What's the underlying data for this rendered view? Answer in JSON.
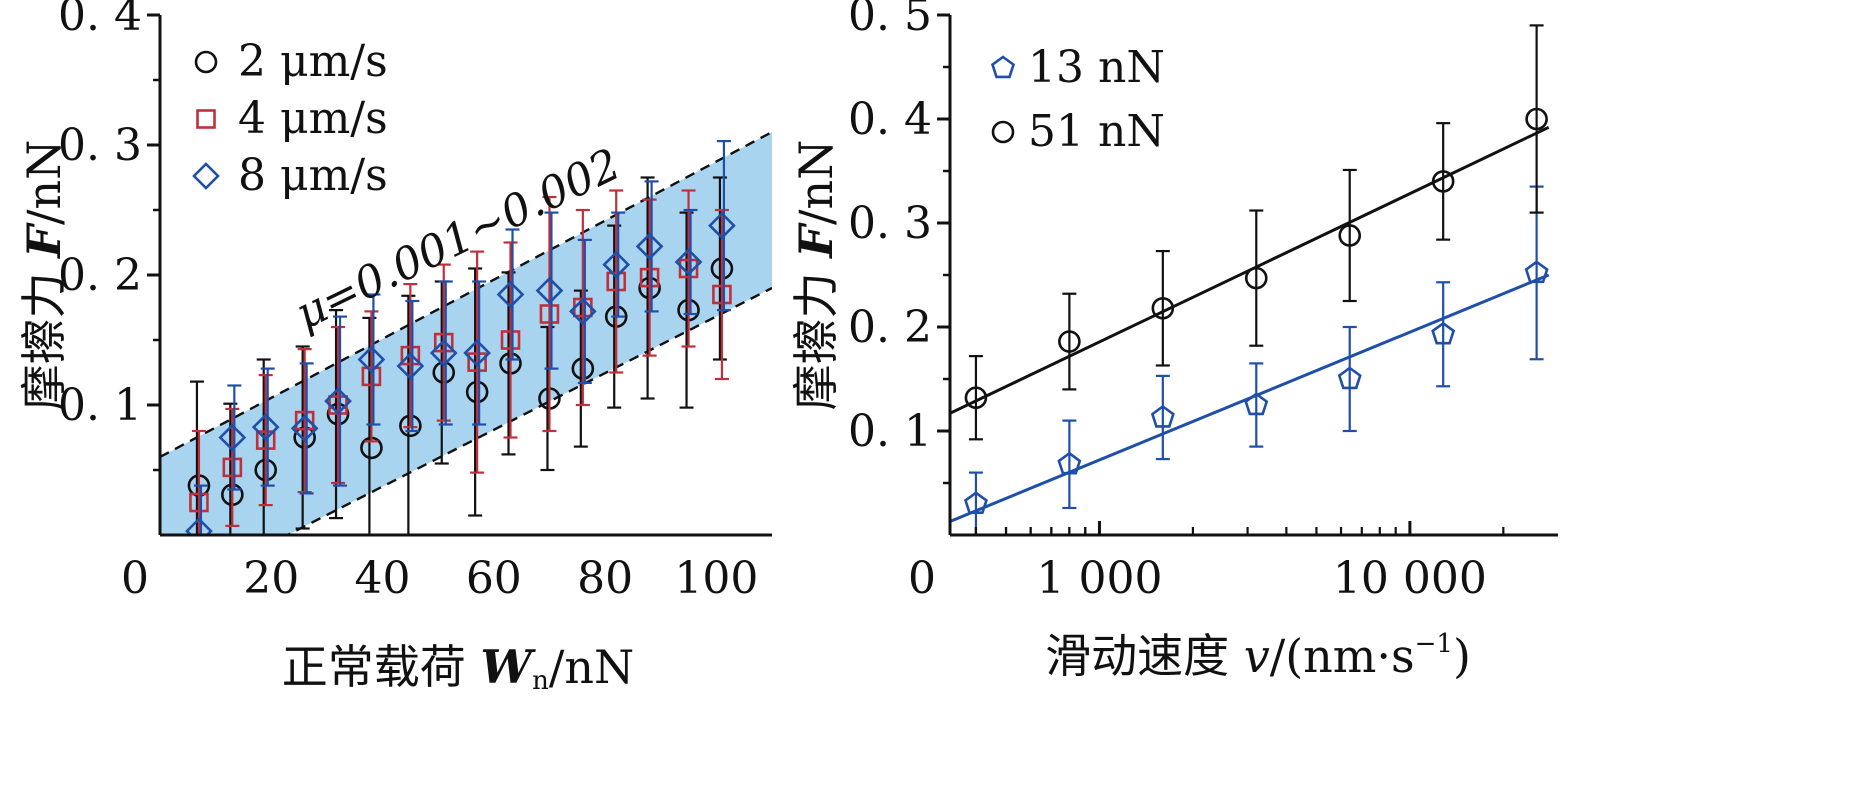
{
  "chart_data": [
    {
      "type": "scatter",
      "xlabel": "正常载荷 Wn /nN",
      "xlabel_parts": {
        "prefix": "正常载荷 ",
        "var": "W",
        "sub": "n",
        "suffix": "/nN"
      },
      "ylabel": "摩擦力 F/nN",
      "ylabel_parts": {
        "prefix": "摩擦力 ",
        "var": "F",
        "suffix": "/nN"
      },
      "xlim": [
        0,
        110
      ],
      "ylim": [
        0,
        0.4
      ],
      "x_ticks": [
        0,
        20,
        40,
        60,
        80,
        100
      ],
      "x_tick_labels": [
        "0",
        "20",
        "40",
        "60",
        "80",
        "100"
      ],
      "y_ticks": [
        0.1,
        0.2,
        0.3,
        0.4
      ],
      "y_tick_labels": [
        "0. 1",
        "0. 2",
        "0. 3",
        "0. 4"
      ],
      "annotation": "μ=0.001~0.002",
      "band": {
        "color": "#a8d4f0",
        "upper": {
          "x": [
            0,
            110
          ],
          "y": [
            0.06,
            0.31
          ]
        },
        "lower": {
          "x": [
            0,
            110
          ],
          "y": [
            -0.05,
            0.19
          ]
        }
      },
      "legend_position": "top-left",
      "series": [
        {
          "name": "2 μm/s",
          "marker": "circle",
          "color": "#111111",
          "x": [
            7,
            13,
            19,
            26,
            32,
            38,
            45,
            51,
            57,
            63,
            70,
            76,
            82,
            88,
            95,
            101
          ],
          "y": [
            0.038,
            0.031,
            0.05,
            0.075,
            0.093,
            0.067,
            0.084,
            0.125,
            0.11,
            0.132,
            0.105,
            0.128,
            0.168,
            0.19,
            0.173,
            0.205
          ],
          "err": [
            0.08,
            0.07,
            0.085,
            0.07,
            0.08,
            0.1,
            0.1,
            0.07,
            0.095,
            0.07,
            0.055,
            0.06,
            0.07,
            0.085,
            0.075,
            0.07
          ]
        },
        {
          "name": "4 μm/s",
          "marker": "square",
          "color": "#c0303a",
          "x": [
            7,
            13,
            19,
            26,
            32,
            38,
            45,
            51,
            57,
            63,
            70,
            76,
            82,
            88,
            95,
            101
          ],
          "y": [
            0.025,
            0.052,
            0.073,
            0.088,
            0.1,
            0.122,
            0.138,
            0.148,
            0.133,
            0.15,
            0.17,
            0.175,
            0.195,
            0.198,
            0.205,
            0.185
          ],
          "err": [
            0.055,
            0.045,
            0.05,
            0.055,
            0.06,
            0.05,
            0.055,
            0.06,
            0.085,
            0.075,
            0.09,
            0.075,
            0.07,
            0.06,
            0.06,
            0.065
          ]
        },
        {
          "name": "8 μm/s",
          "marker": "diamond",
          "color": "#1f4fa8",
          "x": [
            7,
            13,
            19,
            26,
            32,
            38,
            45,
            51,
            57,
            63,
            70,
            76,
            82,
            88,
            95,
            101
          ],
          "y": [
            0.003,
            0.075,
            0.083,
            0.082,
            0.103,
            0.135,
            0.13,
            0.14,
            0.14,
            0.185,
            0.188,
            0.172,
            0.208,
            0.222,
            0.21,
            0.238
          ],
          "err": [
            0.035,
            0.04,
            0.045,
            0.05,
            0.065,
            0.05,
            0.05,
            0.055,
            0.055,
            0.05,
            0.06,
            0.055,
            0.04,
            0.05,
            0.04,
            0.065
          ]
        }
      ]
    },
    {
      "type": "scatter",
      "xscale": "log",
      "xlabel": "滑动速度 v/(nm·s−1)",
      "xlabel_parts": {
        "prefix": "滑动速度 ",
        "var": "v",
        "suffix": "/(nm·s",
        "sup": "−1",
        "close": ")"
      },
      "ylabel": "摩擦力 F/nN",
      "ylabel_parts": {
        "prefix": "摩擦力 ",
        "var": "F",
        "suffix": "/nN"
      },
      "xlim": [
        330,
        30000
      ],
      "ylim": [
        0,
        0.5
      ],
      "x_ticks": [
        1000,
        10000
      ],
      "x_tick_labels": [
        "1 000",
        "10 000"
      ],
      "origin_label": "0",
      "y_ticks": [
        0.1,
        0.2,
        0.3,
        0.4,
        0.5
      ],
      "y_tick_labels": [
        "0. 1",
        "0. 2",
        "0. 3",
        "0. 4",
        "0. 5"
      ],
      "legend_position": "top-left",
      "series": [
        {
          "name": "13 nN",
          "marker": "pentagon",
          "color": "#1f4fa8",
          "x": [
            400,
            800,
            1600,
            3200,
            6400,
            12800,
            25600
          ],
          "y": [
            0.03,
            0.068,
            0.113,
            0.125,
            0.15,
            0.193,
            0.252
          ],
          "err": [
            0.03,
            0.042,
            0.04,
            0.04,
            0.05,
            0.05,
            0.083
          ],
          "fit": {
            "x": [
              330,
              28000
            ],
            "y": [
              0.013,
              0.25
            ]
          }
        },
        {
          "name": "51 nN",
          "marker": "circle",
          "color": "#111111",
          "x": [
            400,
            800,
            1600,
            3200,
            6400,
            12800,
            25600
          ],
          "y": [
            0.132,
            0.186,
            0.218,
            0.247,
            0.288,
            0.34,
            0.4
          ],
          "err": [
            0.04,
            0.046,
            0.055,
            0.065,
            0.063,
            0.056,
            0.09
          ],
          "fit": {
            "x": [
              330,
              28000
            ],
            "y": [
              0.117,
              0.392
            ]
          }
        }
      ]
    }
  ]
}
